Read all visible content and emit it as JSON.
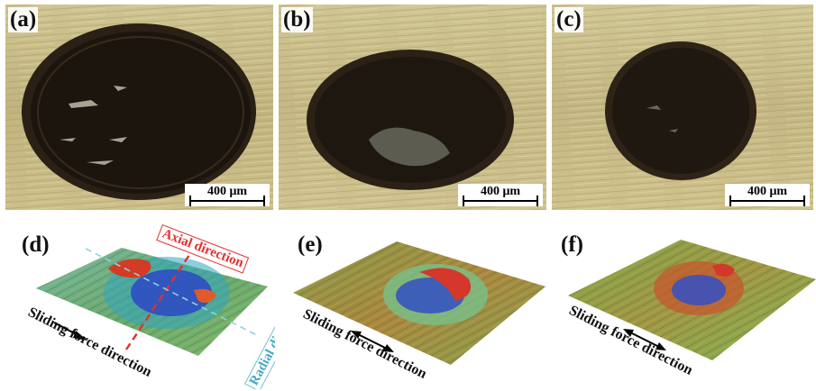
{
  "figure": {
    "panels_micro": [
      {
        "label": "(a)",
        "scale": "400 μm"
      },
      {
        "label": "(b)",
        "scale": "400 μm"
      },
      {
        "label": "(c)",
        "scale": "400 μm"
      }
    ],
    "panels_topo": [
      {
        "label": "(d)",
        "sliding": "Sliding force direction",
        "axial": "Axial direction",
        "radial": "Radial direction"
      },
      {
        "label": "(e)",
        "sliding": "Sliding force direction"
      },
      {
        "label": "(f)",
        "sliding": "Sliding force direction"
      }
    ]
  },
  "colors": {
    "brass": "#c9bd8c",
    "wear_scar": "#241b12",
    "topo_green": "#6fa85a",
    "topo_red": "#d5402a",
    "topo_blue": "#3555c2",
    "axial": "#e23030",
    "radial": "#4aa9c2"
  }
}
